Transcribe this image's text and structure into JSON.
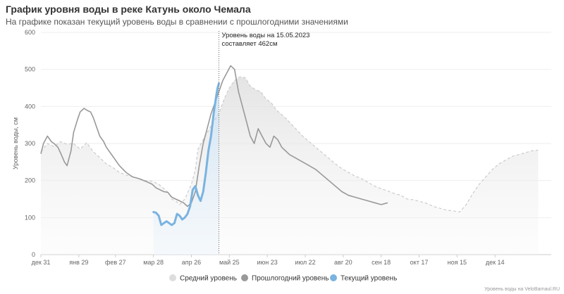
{
  "chart_data": {
    "type": "line",
    "title": "График уровня воды в реке Катунь около Чемала",
    "subtitle": "На графике показан текущий уровень воды в сравнении с прошлогодними значениями",
    "ylabel": "Уровень воды, см",
    "xlabel": "",
    "ylim": [
      0,
      600
    ],
    "yticks": [
      0,
      100,
      200,
      300,
      400,
      500,
      600
    ],
    "xlim": [
      0,
      390
    ],
    "x_unit": "days from дек 31",
    "xticks": [
      {
        "x": 0,
        "label": "дек 31"
      },
      {
        "x": 29,
        "label": "янв 29"
      },
      {
        "x": 57,
        "label": "фев 27"
      },
      {
        "x": 86,
        "label": "мар 28"
      },
      {
        "x": 115,
        "label": "апр 26"
      },
      {
        "x": 144,
        "label": "май 25"
      },
      {
        "x": 173,
        "label": "июн 23"
      },
      {
        "x": 202,
        "label": "июл 22"
      },
      {
        "x": 231,
        "label": "авг 20"
      },
      {
        "x": 260,
        "label": "сен 18"
      },
      {
        "x": 289,
        "label": "окт 17"
      },
      {
        "x": 318,
        "label": "ноя 15"
      },
      {
        "x": 347,
        "label": "дек 14"
      }
    ],
    "grid": "horizontal",
    "legend_position": "bottom",
    "series": [
      {
        "name": "Средний уровень",
        "color": "#cccccc",
        "style": "dashed-area",
        "x": [
          0,
          5,
          10,
          15,
          20,
          25,
          30,
          35,
          40,
          45,
          50,
          55,
          60,
          65,
          70,
          75,
          80,
          85,
          90,
          95,
          98,
          100,
          103,
          106,
          110,
          115,
          118,
          120,
          124,
          128,
          132,
          136,
          140,
          144,
          148,
          152,
          156,
          160,
          164,
          168,
          172,
          176,
          180,
          184,
          188,
          192,
          196,
          200,
          205,
          210,
          215,
          220,
          225,
          230,
          235,
          240,
          245,
          250,
          255,
          260,
          265,
          270,
          275,
          280,
          285,
          290,
          295,
          300,
          305,
          310,
          315,
          320,
          325,
          330,
          335,
          340,
          345,
          350,
          355,
          360,
          365,
          370,
          375,
          380
        ],
        "values": [
          278,
          300,
          292,
          305,
          298,
          300,
          285,
          302,
          278,
          262,
          245,
          235,
          222,
          215,
          210,
          205,
          200,
          198,
          190,
          175,
          165,
          150,
          145,
          135,
          150,
          190,
          230,
          285,
          310,
          335,
          360,
          380,
          420,
          450,
          470,
          480,
          478,
          455,
          445,
          440,
          420,
          410,
          390,
          378,
          365,
          350,
          335,
          320,
          305,
          290,
          275,
          260,
          245,
          232,
          222,
          212,
          205,
          195,
          185,
          178,
          172,
          165,
          160,
          150,
          148,
          143,
          138,
          130,
          125,
          120,
          118,
          115,
          135,
          165,
          190,
          210,
          230,
          245,
          255,
          265,
          270,
          275,
          280,
          282
        ]
      },
      {
        "name": "Прошлогодний уровень",
        "color": "#999999",
        "style": "solid",
        "x": [
          0,
          2,
          5,
          8,
          10,
          13,
          15,
          18,
          20,
          23,
          25,
          28,
          30,
          33,
          35,
          38,
          40,
          43,
          45,
          48,
          50,
          55,
          60,
          65,
          70,
          75,
          80,
          85,
          88,
          91,
          94,
          97,
          100,
          103,
          106,
          109,
          112,
          115,
          118,
          121,
          124,
          127,
          130,
          133,
          136,
          139,
          142,
          145,
          148,
          151,
          154,
          157,
          160,
          163,
          166,
          169,
          172,
          175,
          178,
          181,
          184,
          187,
          190,
          195,
          200,
          205,
          210,
          215,
          220,
          225,
          230,
          235,
          240,
          245,
          250,
          255,
          260,
          265
        ],
        "values": [
          272,
          300,
          320,
          305,
          300,
          290,
          275,
          250,
          240,
          280,
          330,
          365,
          385,
          395,
          390,
          385,
          370,
          340,
          320,
          305,
          290,
          265,
          240,
          222,
          210,
          205,
          198,
          190,
          180,
          175,
          170,
          168,
          155,
          150,
          145,
          140,
          130,
          140,
          170,
          240,
          300,
          340,
          380,
          410,
          440,
          470,
          490,
          510,
          500,
          440,
          400,
          360,
          320,
          300,
          340,
          320,
          300,
          290,
          320,
          310,
          290,
          280,
          270,
          260,
          250,
          240,
          230,
          215,
          200,
          185,
          170,
          160,
          155,
          150,
          145,
          140,
          135,
          140
        ]
      },
      {
        "name": "Текущий уровень",
        "color": "#7ab3e0",
        "style": "solid-thick",
        "x": [
          86,
          88,
          90,
          92,
          94,
          96,
          98,
          100,
          102,
          104,
          106,
          108,
          110,
          112,
          114,
          116,
          118,
          120,
          122,
          124,
          126,
          128,
          130,
          132,
          134,
          135,
          136
        ],
        "values": [
          115,
          113,
          105,
          80,
          85,
          90,
          85,
          80,
          85,
          110,
          105,
          95,
          100,
          110,
          130,
          175,
          185,
          160,
          145,
          170,
          220,
          280,
          320,
          380,
          430,
          450,
          462
        ]
      }
    ],
    "annotation": {
      "x": 136,
      "text_line1": "Уровень воды на 15.05.2023",
      "text_line2": "составляет 462см"
    },
    "credit": "Уровень воды на VeloBarnaul.RU"
  }
}
